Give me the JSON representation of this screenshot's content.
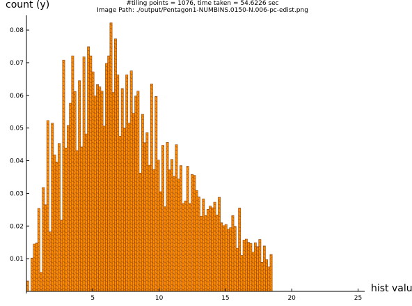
{
  "chart_data": {
    "type": "bar",
    "title_lines": [
      "#tiling points = 1076, time taken = 54.6226 sec",
      "Image Path: ./output/Pentagon1-NUMBINS.0150-N.006-pc-edist.png"
    ],
    "xlabel": "hist value",
    "ylabel": "count (y)",
    "xlim": [
      0,
      25.5
    ],
    "ylim": [
      0,
      0.0845
    ],
    "x_ticks": [
      5,
      10,
      15,
      20,
      25
    ],
    "y_ticks": [
      0.01,
      0.02,
      0.03,
      0.04,
      0.05,
      0.06,
      0.07,
      0.08
    ],
    "x_tick_labels": [
      "5",
      "10",
      "15",
      "20",
      "25"
    ],
    "y_tick_labels": [
      "0.01",
      "0.02",
      "0.03",
      "0.04",
      "0.05",
      "0.06",
      "0.07",
      "0.08"
    ],
    "bin_width": 0.17,
    "bin_start": 0,
    "bar_fill": "#ff8c00",
    "bar_edge": "#8b4513",
    "hatch_color": "#8b4513",
    "grid": false,
    "values": [
      0.0032,
      0.0,
      0.0102,
      0.0145,
      0.0148,
      0.0254,
      0.0058,
      0.0318,
      0.0265,
      0.0523,
      0.0182,
      0.0515,
      0.0418,
      0.0396,
      0.0453,
      0.0218,
      0.0708,
      0.0439,
      0.0508,
      0.0576,
      0.0721,
      0.0612,
      0.0431,
      0.0645,
      0.0442,
      0.0718,
      0.0482,
      0.0749,
      0.0721,
      0.0672,
      0.0598,
      0.0633,
      0.0626,
      0.0613,
      0.0506,
      0.0698,
      0.0721,
      0.0822,
      0.0609,
      0.0773,
      0.0663,
      0.0475,
      0.0621,
      0.05,
      0.0663,
      0.0515,
      0.0675,
      0.0545,
      0.0598,
      0.0613,
      0.0362,
      0.0542,
      0.0455,
      0.0486,
      0.0386,
      0.0635,
      0.0373,
      0.0597,
      0.0402,
      0.0305,
      0.0447,
      0.0259,
      0.0456,
      0.0372,
      0.0404,
      0.0352,
      0.0449,
      0.0344,
      0.0385,
      0.0269,
      0.0277,
      0.0383,
      0.0269,
      0.0358,
      0.0355,
      0.0309,
      0.0289,
      0.023,
      0.0283,
      0.0232,
      0.0251,
      0.0261,
      0.0256,
      0.0273,
      0.0234,
      0.0288,
      0.021,
      0.0201,
      0.0205,
      0.019,
      0.0195,
      0.0232,
      0.0199,
      0.0132,
      0.0255,
      0.011,
      0.0157,
      0.016,
      0.015,
      0.0147,
      0.012,
      0.0149,
      0.0137,
      0.0159,
      0.0089,
      0.0139,
      0.0097,
      0.0075,
      0.0113
    ]
  }
}
